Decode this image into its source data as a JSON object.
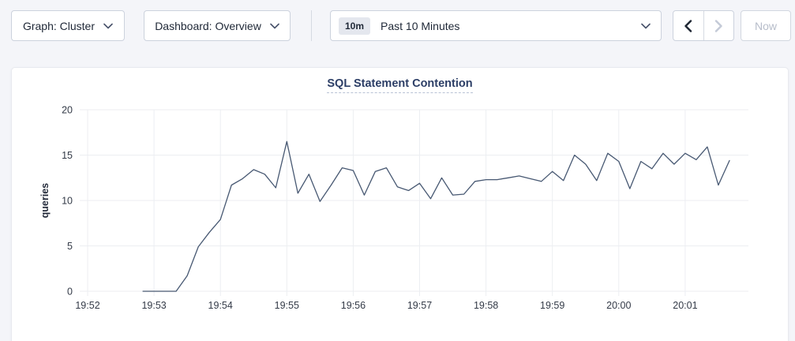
{
  "toolbar": {
    "graph_dropdown": {
      "label": "Graph: Cluster",
      "icon": "chevron-down"
    },
    "dashboard_dropdown": {
      "label": "Dashboard: Overview",
      "icon": "chevron-down"
    },
    "time_selector": {
      "range_badge": "10m",
      "label": "Past 10 Minutes",
      "icon": "chevron-down"
    },
    "prev_button": {
      "icon": "chevron-left",
      "enabled": true
    },
    "next_button": {
      "icon": "chevron-right",
      "enabled": false
    },
    "now_button": {
      "label": "Now",
      "enabled": false
    }
  },
  "colors": {
    "page_bg": "#f4f5f9",
    "panel_bg": "#ffffff",
    "accent_navy": "#2c3e66",
    "line": "#475872",
    "grid": "#eceef2",
    "text": "#1e2736",
    "disabled": "#c4cad7"
  },
  "chart_data": {
    "type": "line",
    "title": "SQL Statement Contention",
    "xlabel": "",
    "ylabel": "queries",
    "ylim": [
      0,
      20
    ],
    "yticks": [
      0,
      5,
      10,
      15,
      20
    ],
    "xtick_labels": [
      "19:52",
      "19:53",
      "19:54",
      "19:55",
      "19:56",
      "19:57",
      "19:58",
      "19:59",
      "20:00",
      "20:01"
    ],
    "start_time": "19:52:50",
    "interval_seconds": 10,
    "grid": true,
    "legend_position": "none",
    "series": [
      {
        "name": "SQL Statement Contention",
        "values": [
          0,
          0,
          0,
          0,
          1.7,
          4.9,
          6.5,
          7.9,
          11.7,
          12.4,
          13.4,
          12.9,
          11.4,
          16.5,
          10.8,
          12.9,
          9.9,
          11.7,
          13.6,
          13.3,
          10.6,
          13.2,
          13.6,
          11.5,
          11.1,
          11.9,
          10.2,
          12.5,
          10.6,
          10.7,
          12.1,
          12.3,
          12.3,
          12.5,
          12.7,
          12.4,
          12.1,
          13.2,
          12.2,
          15.0,
          14.0,
          12.2,
          15.2,
          14.3,
          11.3,
          14.3,
          13.5,
          15.2,
          14.0,
          15.2,
          14.5,
          15.9,
          11.7,
          14.4
        ]
      }
    ]
  }
}
